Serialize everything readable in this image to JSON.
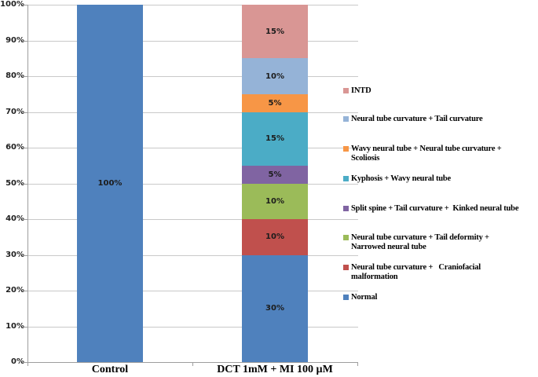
{
  "chart_data": {
    "type": "bar",
    "stacked": true,
    "title": "",
    "xlabel": "",
    "ylabel": "",
    "ylim": [
      0,
      100
    ],
    "y_tick_step": 10,
    "y_tick_labels": [
      "0%",
      "10%",
      "20%",
      "30%",
      "40%",
      "50%",
      "60%",
      "70%",
      "80%",
      "90%",
      "100%"
    ],
    "grid": "horizontal",
    "legend_position": "right",
    "data_label_format": "{value}%",
    "categories": [
      "Control",
      "DCT 1mM + MI 100 µM"
    ],
    "series": [
      {
        "name": "Normal",
        "color": "#4F81BD",
        "values": [
          100,
          30
        ]
      },
      {
        "name": "Neural tube curvature + Craniofacial malformation",
        "color": "#C0504D",
        "values": [
          0,
          10
        ]
      },
      {
        "name": "Neural tube curvature + Tail deformity + Narrowed neural tube",
        "color": "#9BBB59",
        "values": [
          0,
          10
        ]
      },
      {
        "name": "Split spine + Tail curvature + Kinked neural tube",
        "color": "#8064A2",
        "values": [
          0,
          5
        ]
      },
      {
        "name": "Kyphosis + Wavy neural tube",
        "color": "#4BACC6",
        "values": [
          0,
          15
        ]
      },
      {
        "name": "Wavy neural tube + Neural tube curvature + Scoliosis",
        "color": "#F79646",
        "values": [
          0,
          5
        ]
      },
      {
        "name": "Neural tube curvature + Tail curvature",
        "color": "#95B3D7",
        "values": [
          0,
          10
        ]
      },
      {
        "name": "INTD",
        "color": "#D99694",
        "values": [
          0,
          15
        ]
      }
    ],
    "legend": [
      {
        "color": "#D99694",
        "lines": [
          "INTD"
        ]
      },
      {
        "color": "#95B3D7",
        "lines": [
          "Neural tube curvature + Tail curvature"
        ]
      },
      {
        "color": "#F79646",
        "lines": [
          "Wavy neural tube + Neural tube curvature +",
          "Scoliosis"
        ]
      },
      {
        "color": "#4BACC6",
        "lines": [
          "Kyphosis + Wavy neural tube"
        ]
      },
      {
        "color": "#8064A2",
        "lines": [
          "Split spine + Tail curvature +  Kinked neural tube"
        ]
      },
      {
        "color": "#9BBB59",
        "lines": [
          "Neural tube curvature + Tail deformity +",
          "Narrowed neural tube"
        ]
      },
      {
        "color": "#C0504D",
        "lines": [
          "Neural tube curvature +   Craniofacial",
          "malformation"
        ]
      },
      {
        "color": "#4F81BD",
        "lines": [
          "Normal"
        ]
      }
    ]
  }
}
